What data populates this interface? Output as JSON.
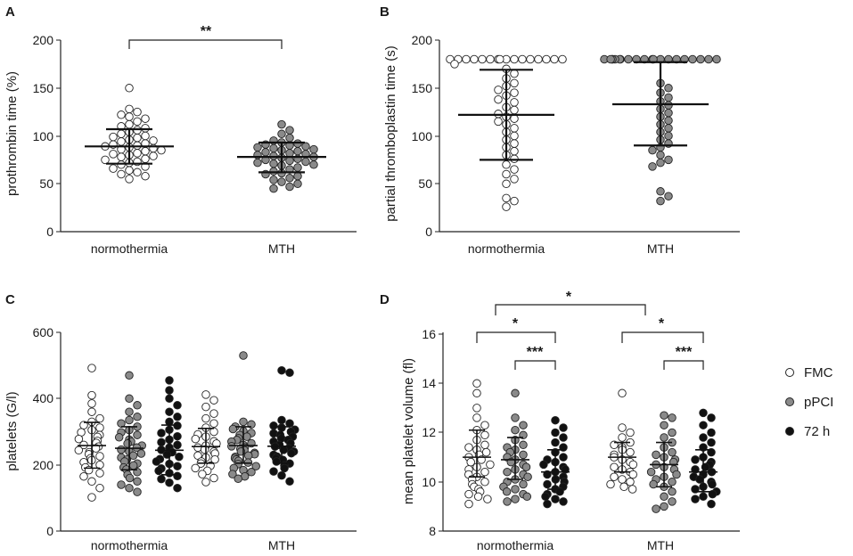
{
  "panels": {
    "A": {
      "letter": "A",
      "ylabel": "prothrombin time (%)",
      "yticks": [
        "0",
        "50",
        "100",
        "150",
        "200"
      ],
      "categories": [
        "normothermia",
        "MTH"
      ],
      "star": "**"
    },
    "B": {
      "letter": "B",
      "ylabel": "partial thromboplastin time (s)",
      "yticks": [
        "0",
        "50",
        "100",
        "150",
        "200"
      ],
      "categories": [
        "normothermia",
        "MTH"
      ]
    },
    "C": {
      "letter": "C",
      "ylabel": "platelets (G/l)",
      "yticks": [
        "0",
        "200",
        "400",
        "600"
      ],
      "categories": [
        "normothermia",
        "MTH"
      ]
    },
    "D": {
      "letter": "D",
      "ylabel": "mean platelet volume (fl)",
      "yticks": [
        "8",
        "10",
        "12",
        "14",
        "16"
      ],
      "categories": [
        "normothermia",
        "MTH"
      ],
      "stars": [
        "*",
        "*",
        "***",
        "*",
        "***"
      ]
    }
  },
  "legend": {
    "fmc": "FMC",
    "ppci": "pPCI",
    "h72": "72 h"
  },
  "colors": {
    "FMC": "#ffffff",
    "pPCI": "#8a8a8a",
    "72 h": "#111111",
    "axis": "#222222"
  },
  "chart_data": [
    {
      "panel": "A",
      "type": "scatter",
      "title": "",
      "ylabel": "prothrombin time (%)",
      "ylim": [
        0,
        200
      ],
      "categories": [
        "normothermia",
        "MTH"
      ],
      "series": [
        {
          "name": "normothermia",
          "fill": "open",
          "mean": 89,
          "sd_low": 71,
          "sd_high": 107,
          "values": [
            150,
            128,
            125,
            122,
            120,
            118,
            115,
            112,
            110,
            108,
            106,
            104,
            102,
            100,
            99,
            98,
            96,
            95,
            94,
            92,
            91,
            90,
            89,
            88,
            87,
            86,
            85,
            84,
            82,
            81,
            80,
            79,
            78,
            76,
            75,
            73,
            72,
            70,
            68,
            66,
            64,
            62,
            60,
            58,
            55
          ]
        },
        {
          "name": "MTH",
          "fill": "gray",
          "mean": 78,
          "sd_low": 62,
          "sd_high": 93,
          "values": [
            112,
            106,
            102,
            98,
            95,
            93,
            92,
            91,
            90,
            89,
            88,
            87,
            86,
            85,
            84,
            83,
            82,
            81,
            80,
            79,
            78,
            77,
            76,
            75,
            74,
            73,
            72,
            71,
            70,
            69,
            67,
            65,
            63,
            61,
            60,
            58,
            56,
            54,
            52,
            50,
            47,
            45
          ]
        }
      ],
      "comparisons": [
        {
          "from": "normothermia",
          "to": "MTH",
          "label": "**"
        }
      ]
    },
    {
      "panel": "B",
      "type": "scatter",
      "ylabel": "partial thromboplastin time (s)",
      "ylim": [
        0,
        200
      ],
      "categories": [
        "normothermia",
        "MTH"
      ],
      "series": [
        {
          "name": "normothermia",
          "fill": "open",
          "mean": 122,
          "sd_low": 75,
          "sd_high": 169,
          "values": [
            180,
            180,
            180,
            180,
            180,
            180,
            180,
            180,
            180,
            180,
            180,
            180,
            180,
            180,
            180,
            180,
            175,
            170,
            165,
            160,
            155,
            152,
            148,
            145,
            142,
            138,
            135,
            130,
            127,
            123,
            120,
            118,
            115,
            112,
            108,
            104,
            100,
            96,
            92,
            88,
            84,
            80,
            76,
            70,
            65,
            60,
            55,
            50,
            35,
            32,
            26
          ]
        },
        {
          "name": "MTH",
          "fill": "gray",
          "mean": 133,
          "sd_low": 90,
          "sd_high": 177,
          "values": [
            180,
            180,
            180,
            180,
            180,
            180,
            180,
            180,
            180,
            180,
            180,
            180,
            180,
            180,
            180,
            180,
            180,
            180,
            180,
            180,
            155,
            150,
            145,
            140,
            136,
            132,
            128,
            124,
            120,
            116,
            112,
            108,
            104,
            100,
            96,
            92,
            88,
            85,
            80,
            75,
            72,
            68,
            42,
            37,
            32
          ]
        }
      ]
    },
    {
      "panel": "C",
      "type": "scatter",
      "ylabel": "platelets (G/l)",
      "ylim": [
        0,
        600
      ],
      "categories": [
        "normothermia",
        "MTH"
      ],
      "series_names": [
        "FMC",
        "pPCI",
        "72 h"
      ],
      "groups": [
        {
          "category": "normothermia",
          "series": "FMC",
          "mean": 258,
          "sd_low": 190,
          "sd_high": 328,
          "values": [
            492,
            410,
            385,
            360,
            340,
            330,
            320,
            312,
            305,
            298,
            290,
            284,
            278,
            272,
            266,
            260,
            255,
            250,
            244,
            238,
            232,
            226,
            220,
            214,
            208,
            200,
            192,
            184,
            175,
            165,
            150,
            130,
            102
          ]
        },
        {
          "category": "normothermia",
          "series": "pPCI",
          "mean": 250,
          "sd_low": 185,
          "sd_high": 315,
          "values": [
            470,
            400,
            380,
            360,
            345,
            335,
            325,
            315,
            305,
            298,
            290,
            283,
            276,
            270,
            264,
            258,
            252,
            246,
            240,
            234,
            228,
            222,
            216,
            210,
            204,
            198,
            192,
            186,
            178,
            170,
            160,
            150,
            140,
            130,
            118
          ]
        },
        {
          "category": "normothermia",
          "series": "72 h",
          "mean": 244,
          "sd_low": 170,
          "sd_high": 320,
          "values": [
            455,
            425,
            400,
            380,
            360,
            345,
            330,
            318,
            306,
            296,
            286,
            276,
            268,
            260,
            252,
            245,
            238,
            231,
            224,
            217,
            210,
            203,
            196,
            189,
            182,
            175,
            166,
            157,
            146,
            130
          ]
        },
        {
          "category": "MTH",
          "series": "FMC",
          "mean": 255,
          "sd_low": 205,
          "sd_high": 310,
          "values": [
            412,
            395,
            375,
            355,
            340,
            325,
            312,
            300,
            292,
            285,
            278,
            271,
            264,
            258,
            252,
            246,
            240,
            234,
            228,
            222,
            216,
            210,
            204,
            197,
            190,
            182,
            172,
            160,
            148
          ]
        },
        {
          "category": "MTH",
          "series": "pPCI",
          "mean": 258,
          "sd_low": 205,
          "sd_high": 315,
          "values": [
            530,
            330,
            322,
            315,
            308,
            302,
            296,
            290,
            285,
            280,
            275,
            270,
            265,
            260,
            256,
            252,
            248,
            244,
            240,
            236,
            232,
            228,
            224,
            220,
            216,
            212,
            207,
            202,
            196,
            190,
            184,
            178,
            172,
            165,
            158
          ]
        },
        {
          "category": "MTH",
          "series": "72 h",
          "mean": 256,
          "sd_low": 205,
          "sd_high": 315,
          "values": [
            485,
            478,
            335,
            325,
            318,
            312,
            306,
            300,
            295,
            290,
            285,
            280,
            275,
            270,
            265,
            260,
            255,
            250,
            245,
            240,
            235,
            230,
            225,
            220,
            215,
            210,
            204,
            198,
            190,
            180,
            168,
            150
          ]
        }
      ]
    },
    {
      "panel": "D",
      "type": "scatter",
      "ylabel": "mean platelet volume (fl)",
      "ylim": [
        8,
        16
      ],
      "categories": [
        "normothermia",
        "MTH"
      ],
      "series_names": [
        "FMC",
        "pPCI",
        "72 h"
      ],
      "groups": [
        {
          "category": "normothermia",
          "series": "FMC",
          "mean": 11.0,
          "sd_low": 10.2,
          "sd_high": 12.1,
          "values": [
            14.0,
            13.6,
            13.0,
            12.6,
            12.3,
            12.1,
            11.9,
            11.7,
            11.5,
            11.4,
            11.3,
            11.2,
            11.1,
            11.0,
            10.9,
            10.8,
            10.7,
            10.6,
            10.5,
            10.4,
            10.3,
            10.2,
            10.1,
            10.0,
            9.9,
            9.8,
            9.7,
            9.6,
            9.5,
            9.4,
            9.3,
            9.1
          ]
        },
        {
          "category": "normothermia",
          "series": "pPCI",
          "mean": 10.9,
          "sd_low": 10.1,
          "sd_high": 11.8,
          "values": [
            13.6,
            12.6,
            12.3,
            12.1,
            11.9,
            11.7,
            11.5,
            11.4,
            11.3,
            11.2,
            11.1,
            11.0,
            10.9,
            10.8,
            10.7,
            10.6,
            10.5,
            10.4,
            10.3,
            10.2,
            10.1,
            10.0,
            9.9,
            9.8,
            9.7,
            9.6,
            9.5,
            9.4,
            9.3,
            9.2
          ]
        },
        {
          "category": "normothermia",
          "series": "72 h",
          "mean": 10.4,
          "sd_low": 9.7,
          "sd_high": 11.3,
          "values": [
            12.5,
            12.2,
            12.0,
            11.8,
            11.6,
            11.4,
            11.2,
            11.0,
            10.9,
            10.8,
            10.7,
            10.6,
            10.5,
            10.4,
            10.3,
            10.2,
            10.1,
            10.0,
            9.9,
            9.8,
            9.7,
            9.6,
            9.5,
            9.4,
            9.3,
            9.2,
            9.1
          ]
        },
        {
          "category": "MTH",
          "series": "FMC",
          "mean": 11.0,
          "sd_low": 10.4,
          "sd_high": 11.6,
          "values": [
            13.6,
            12.2,
            12.0,
            11.8,
            11.6,
            11.5,
            11.4,
            11.3,
            11.2,
            11.1,
            11.0,
            10.9,
            10.8,
            10.7,
            10.6,
            10.5,
            10.4,
            10.3,
            10.2,
            10.1,
            10.0,
            9.9,
            9.8,
            9.7
          ]
        },
        {
          "category": "MTH",
          "series": "pPCI",
          "mean": 10.7,
          "sd_low": 9.8,
          "sd_high": 11.6,
          "values": [
            12.7,
            12.6,
            12.3,
            12.0,
            11.8,
            11.6,
            11.4,
            11.2,
            11.1,
            11.0,
            10.9,
            10.8,
            10.7,
            10.6,
            10.5,
            10.4,
            10.3,
            10.2,
            10.1,
            10.0,
            9.9,
            9.8,
            9.6,
            9.4,
            9.2,
            9.0,
            8.9
          ]
        },
        {
          "category": "MTH",
          "series": "72 h",
          "mean": 10.4,
          "sd_low": 9.6,
          "sd_high": 11.3,
          "values": [
            12.8,
            12.6,
            12.3,
            12.0,
            11.8,
            11.6,
            11.4,
            11.2,
            11.0,
            10.9,
            10.8,
            10.7,
            10.6,
            10.5,
            10.4,
            10.3,
            10.2,
            10.1,
            10.0,
            9.9,
            9.8,
            9.7,
            9.6,
            9.5,
            9.4,
            9.3,
            9.1
          ]
        }
      ],
      "comparisons": [
        {
          "from": "normothermia FMC",
          "to": "MTH FMC",
          "label": "*"
        },
        {
          "from": "normothermia FMC",
          "to": "normothermia 72 h",
          "label": "*"
        },
        {
          "from": "normothermia pPCI",
          "to": "normothermia 72 h",
          "label": "***"
        },
        {
          "from": "MTH FMC",
          "to": "MTH 72 h",
          "label": "*"
        },
        {
          "from": "MTH pPCI",
          "to": "MTH 72 h",
          "label": "***"
        }
      ]
    }
  ]
}
